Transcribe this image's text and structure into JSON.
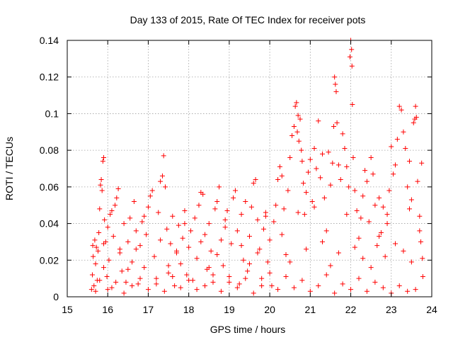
{
  "chart_data": {
    "type": "scatter",
    "title": "Day 133 of 2015, Rate Of TEC Index for receiver pots",
    "xlabel": "GPS time / hours",
    "ylabel": "ROTI / TECUs",
    "xlim": [
      15,
      24
    ],
    "ylim": [
      0,
      0.14
    ],
    "x_ticks": [
      15,
      16,
      17,
      18,
      19,
      20,
      21,
      22,
      23,
      24
    ],
    "x_tick_labels": [
      "15",
      "16",
      "17",
      "18",
      "19",
      "20",
      "21",
      "22",
      "23",
      "24"
    ],
    "y_ticks": [
      0,
      0.02,
      0.04,
      0.06,
      0.08,
      0.1,
      0.12,
      0.14
    ],
    "y_tick_labels": [
      "0",
      "0.02",
      "0.04",
      "0.06",
      "0.08",
      "0.1",
      "0.12",
      "0.14"
    ],
    "grid": true,
    "marker": "+",
    "color": "#ff0000",
    "points": [
      [
        15.6,
        0.004
      ],
      [
        15.62,
        0.012
      ],
      [
        15.63,
        0.028
      ],
      [
        15.64,
        0.022
      ],
      [
        15.66,
        0.006
      ],
      [
        15.68,
        0.031
      ],
      [
        15.7,
        0.018
      ],
      [
        15.72,
        0.027
      ],
      [
        15.74,
        0.009
      ],
      [
        15.76,
        0.025
      ],
      [
        15.78,
        0.035
      ],
      [
        15.8,
        0.048
      ],
      [
        15.82,
        0.061
      ],
      [
        15.84,
        0.064
      ],
      [
        15.86,
        0.058
      ],
      [
        15.88,
        0.074
      ],
      [
        15.9,
        0.076
      ],
      [
        15.92,
        0.042
      ],
      [
        15.95,
        0.03
      ],
      [
        15.98,
        0.011
      ],
      [
        16.0,
        0.038
      ],
      [
        16.03,
        0.02
      ],
      [
        16.06,
        0.045
      ],
      [
        16.1,
        0.005
      ],
      [
        16.14,
        0.033
      ],
      [
        16.18,
        0.05
      ],
      [
        16.22,
        0.054
      ],
      [
        16.26,
        0.059
      ],
      [
        16.3,
        0.026
      ],
      [
        16.35,
        0.014
      ],
      [
        16.4,
        0.04
      ],
      [
        16.45,
        0.008
      ],
      [
        16.5,
        0.03
      ],
      [
        16.55,
        0.043
      ],
      [
        16.6,
        0.019
      ],
      [
        16.65,
        0.052
      ],
      [
        16.7,
        0.036
      ],
      [
        16.75,
        0.007
      ],
      [
        16.8,
        0.028
      ],
      [
        16.85,
        0.041
      ],
      [
        16.9,
        0.016
      ],
      [
        16.95,
        0.034
      ],
      [
        17.0,
        0.049
      ],
      [
        17.05,
        0.055
      ],
      [
        17.1,
        0.058
      ],
      [
        17.15,
        0.022
      ],
      [
        17.2,
        0.01
      ],
      [
        17.25,
        0.046
      ],
      [
        17.3,
        0.063
      ],
      [
        17.35,
        0.066
      ],
      [
        17.38,
        0.077
      ],
      [
        17.42,
        0.06
      ],
      [
        17.46,
        0.037
      ],
      [
        17.5,
        0.013
      ],
      [
        17.55,
        0.029
      ],
      [
        17.6,
        0.044
      ],
      [
        17.65,
        0.006
      ],
      [
        17.7,
        0.024
      ],
      [
        17.75,
        0.039
      ],
      [
        17.8,
        0.018
      ],
      [
        17.85,
        0.032
      ],
      [
        17.9,
        0.047
      ],
      [
        17.95,
        0.012
      ],
      [
        18.0,
        0.027
      ],
      [
        18.05,
        0.036
      ],
      [
        18.1,
        0.009
      ],
      [
        18.15,
        0.043
      ],
      [
        18.2,
        0.021
      ],
      [
        18.25,
        0.05
      ],
      [
        18.3,
        0.057
      ],
      [
        18.35,
        0.056
      ],
      [
        18.4,
        0.034
      ],
      [
        18.45,
        0.015
      ],
      [
        18.5,
        0.04
      ],
      [
        18.55,
        0.025
      ],
      [
        18.6,
        0.008
      ],
      [
        18.65,
        0.048
      ],
      [
        18.7,
        0.052
      ],
      [
        18.75,
        0.06
      ],
      [
        18.8,
        0.031
      ],
      [
        18.85,
        0.017
      ],
      [
        18.9,
        0.038
      ],
      [
        18.95,
        0.047
      ],
      [
        19.0,
        0.011
      ],
      [
        19.05,
        0.029
      ],
      [
        19.1,
        0.054
      ],
      [
        19.15,
        0.058
      ],
      [
        19.2,
        0.036
      ],
      [
        19.25,
        0.007
      ],
      [
        19.3,
        0.045
      ],
      [
        19.35,
        0.02
      ],
      [
        19.4,
        0.052
      ],
      [
        19.45,
        0.014
      ],
      [
        19.5,
        0.033
      ],
      [
        19.55,
        0.049
      ],
      [
        19.6,
        0.062
      ],
      [
        19.65,
        0.064
      ],
      [
        19.7,
        0.042
      ],
      [
        19.75,
        0.026
      ],
      [
        19.8,
        0.01
      ],
      [
        19.85,
        0.037
      ],
      [
        19.9,
        0.046
      ],
      [
        19.95,
        0.019
      ],
      [
        20.0,
        0.031
      ],
      [
        20.05,
        0.006
      ],
      [
        20.1,
        0.041
      ],
      [
        20.15,
        0.05
      ],
      [
        20.2,
        0.064
      ],
      [
        20.25,
        0.071
      ],
      [
        20.3,
        0.066
      ],
      [
        20.35,
        0.048
      ],
      [
        20.4,
        0.023
      ],
      [
        20.45,
        0.058
      ],
      [
        20.5,
        0.076
      ],
      [
        20.55,
        0.088
      ],
      [
        20.6,
        0.093
      ],
      [
        20.63,
        0.104
      ],
      [
        20.66,
        0.106
      ],
      [
        20.68,
        0.09
      ],
      [
        20.7,
        0.099
      ],
      [
        20.72,
        0.085
      ],
      [
        20.75,
        0.097
      ],
      [
        20.78,
        0.08
      ],
      [
        20.8,
        0.074
      ],
      [
        20.83,
        0.062
      ],
      [
        20.86,
        0.045
      ],
      [
        20.9,
        0.057
      ],
      [
        20.95,
        0.068
      ],
      [
        21.0,
        0.075
      ],
      [
        21.05,
        0.052
      ],
      [
        21.1,
        0.081
      ],
      [
        21.15,
        0.07
      ],
      [
        21.2,
        0.096
      ],
      [
        21.25,
        0.065
      ],
      [
        21.3,
        0.078
      ],
      [
        21.35,
        0.054
      ],
      [
        21.4,
        0.036
      ],
      [
        21.45,
        0.079
      ],
      [
        21.5,
        0.061
      ],
      [
        21.55,
        0.073
      ],
      [
        21.58,
        0.093
      ],
      [
        21.6,
        0.12
      ],
      [
        21.62,
        0.116
      ],
      [
        21.64,
        0.112
      ],
      [
        21.66,
        0.095
      ],
      [
        21.7,
        0.072
      ],
      [
        21.75,
        0.064
      ],
      [
        21.8,
        0.089
      ],
      [
        21.85,
        0.081
      ],
      [
        21.9,
        0.071
      ],
      [
        21.95,
        0.06
      ],
      [
        21.98,
        0.131
      ],
      [
        22.0,
        0.14
      ],
      [
        22.02,
        0.135
      ],
      [
        22.03,
        0.126
      ],
      [
        22.04,
        0.105
      ],
      [
        22.06,
        0.076
      ],
      [
        22.1,
        0.058
      ],
      [
        22.15,
        0.047
      ],
      [
        22.2,
        0.032
      ],
      [
        22.25,
        0.043
      ],
      [
        22.3,
        0.055
      ],
      [
        22.35,
        0.069
      ],
      [
        22.4,
        0.063
      ],
      [
        22.45,
        0.041
      ],
      [
        22.5,
        0.076
      ],
      [
        22.55,
        0.067
      ],
      [
        22.6,
        0.05
      ],
      [
        22.65,
        0.028
      ],
      [
        22.7,
        0.054
      ],
      [
        22.75,
        0.035
      ],
      [
        22.8,
        0.049
      ],
      [
        22.85,
        0.022
      ],
      [
        22.9,
        0.045
      ],
      [
        22.95,
        0.058
      ],
      [
        23.0,
        0.082
      ],
      [
        23.05,
        0.067
      ],
      [
        23.1,
        0.072
      ],
      [
        23.15,
        0.086
      ],
      [
        23.2,
        0.104
      ],
      [
        23.25,
        0.102
      ],
      [
        23.3,
        0.09
      ],
      [
        23.35,
        0.081
      ],
      [
        23.4,
        0.06
      ],
      [
        23.45,
        0.074
      ],
      [
        23.5,
        0.053
      ],
      [
        23.55,
        0.095
      ],
      [
        23.58,
        0.097
      ],
      [
        23.6,
        0.104
      ],
      [
        23.62,
        0.098
      ],
      [
        23.65,
        0.063
      ],
      [
        23.7,
        0.044
      ],
      [
        23.73,
        0.03
      ],
      [
        23.75,
        0.073
      ],
      [
        23.77,
        0.021
      ],
      [
        23.78,
        0.011
      ],
      [
        23.6,
        0.004
      ],
      [
        23.4,
        0.003
      ],
      [
        23.2,
        0.006
      ],
      [
        23.0,
        0.002
      ],
      [
        22.8,
        0.005
      ],
      [
        22.6,
        0.008
      ],
      [
        22.4,
        0.003
      ],
      [
        22.2,
        0.01
      ],
      [
        22.0,
        0.004
      ],
      [
        21.8,
        0.007
      ],
      [
        21.6,
        0.002
      ],
      [
        21.4,
        0.012
      ],
      [
        21.2,
        0.006
      ],
      [
        21.0,
        0.003
      ],
      [
        20.8,
        0.009
      ],
      [
        20.6,
        0.005
      ],
      [
        20.4,
        0.011
      ],
      [
        20.2,
        0.004
      ],
      [
        20.0,
        0.013
      ],
      [
        19.8,
        0.006
      ],
      [
        19.6,
        0.002
      ],
      [
        19.4,
        0.01
      ],
      [
        19.2,
        0.005
      ],
      [
        19.0,
        0.008
      ],
      [
        18.8,
        0.003
      ],
      [
        18.6,
        0.012
      ],
      [
        18.4,
        0.006
      ],
      [
        18.2,
        0.004
      ],
      [
        18.0,
        0.009
      ],
      [
        17.8,
        0.005
      ],
      [
        17.6,
        0.011
      ],
      [
        17.4,
        0.003
      ],
      [
        17.2,
        0.007
      ],
      [
        17.0,
        0.004
      ],
      [
        16.8,
        0.01
      ],
      [
        16.6,
        0.006
      ],
      [
        16.4,
        0.002
      ],
      [
        16.2,
        0.008
      ],
      [
        16.0,
        0.004
      ],
      [
        15.8,
        0.009
      ],
      [
        15.7,
        0.003
      ],
      [
        15.9,
        0.016
      ],
      [
        16.5,
        0.015
      ],
      [
        17.5,
        0.017
      ],
      [
        18.5,
        0.016
      ],
      [
        19.5,
        0.018
      ],
      [
        20.5,
        0.019
      ],
      [
        21.5,
        0.017
      ],
      [
        22.5,
        0.016
      ],
      [
        23.5,
        0.019
      ],
      [
        20.9,
        0.026
      ],
      [
        21.3,
        0.03
      ],
      [
        21.7,
        0.024
      ],
      [
        22.1,
        0.027
      ],
      [
        22.3,
        0.021
      ],
      [
        22.7,
        0.033
      ],
      [
        23.1,
        0.029
      ],
      [
        23.3,
        0.025
      ],
      [
        23.7,
        0.036
      ],
      [
        20.3,
        0.034
      ],
      [
        19.7,
        0.024
      ],
      [
        19.3,
        0.028
      ],
      [
        18.7,
        0.023
      ],
      [
        18.3,
        0.03
      ],
      [
        17.7,
        0.025
      ],
      [
        17.3,
        0.031
      ],
      [
        16.7,
        0.026
      ],
      [
        16.3,
        0.024
      ],
      [
        15.9,
        0.029
      ],
      [
        16.1,
        0.047
      ],
      [
        16.9,
        0.044
      ],
      [
        17.9,
        0.04
      ],
      [
        18.9,
        0.042
      ],
      [
        19.9,
        0.044
      ],
      [
        20.7,
        0.046
      ],
      [
        21.1,
        0.049
      ],
      [
        21.9,
        0.045
      ],
      [
        22.9,
        0.04
      ],
      [
        23.45,
        0.048
      ]
    ]
  }
}
